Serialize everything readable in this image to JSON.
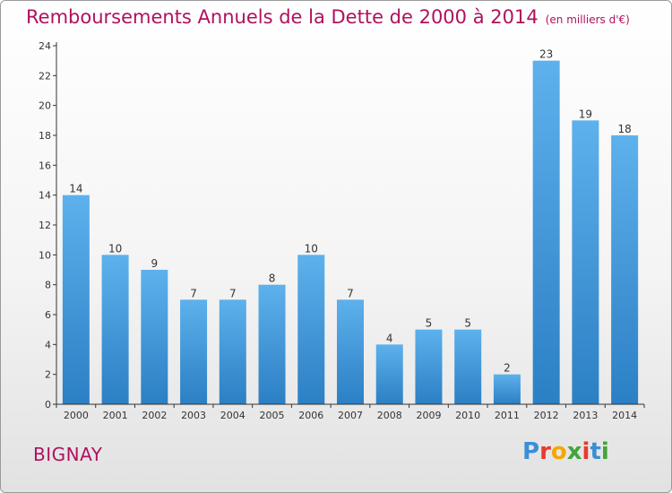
{
  "title": "Remboursements Annuels de la Dette de 2000 à 2014",
  "subtitle": "(en milliers d'€)",
  "commune": "BIGNAY",
  "logo": {
    "text": "Proxiti",
    "colors": [
      "#3a8fd6",
      "#e63b2e",
      "#f7a600",
      "#41a53a",
      "#e63b2e",
      "#3a8fd6",
      "#41a53a"
    ]
  },
  "colors": {
    "bar": "#4aa0e3",
    "bar_dark": "#2f86cc",
    "title": "#b0115e",
    "axis": "#333333"
  },
  "chart_data": {
    "type": "bar",
    "categories": [
      "2000",
      "2001",
      "2002",
      "2003",
      "2004",
      "2005",
      "2006",
      "2007",
      "2008",
      "2009",
      "2010",
      "2011",
      "2012",
      "2013",
      "2014"
    ],
    "values": [
      14,
      10,
      9,
      7,
      7,
      8,
      10,
      7,
      4,
      5,
      5,
      2,
      23,
      19,
      18
    ],
    "ylim": [
      0,
      24
    ],
    "yticks": [
      0,
      2,
      4,
      6,
      8,
      10,
      12,
      14,
      16,
      18,
      20,
      22,
      24
    ],
    "grid": false,
    "data_labels": true
  }
}
